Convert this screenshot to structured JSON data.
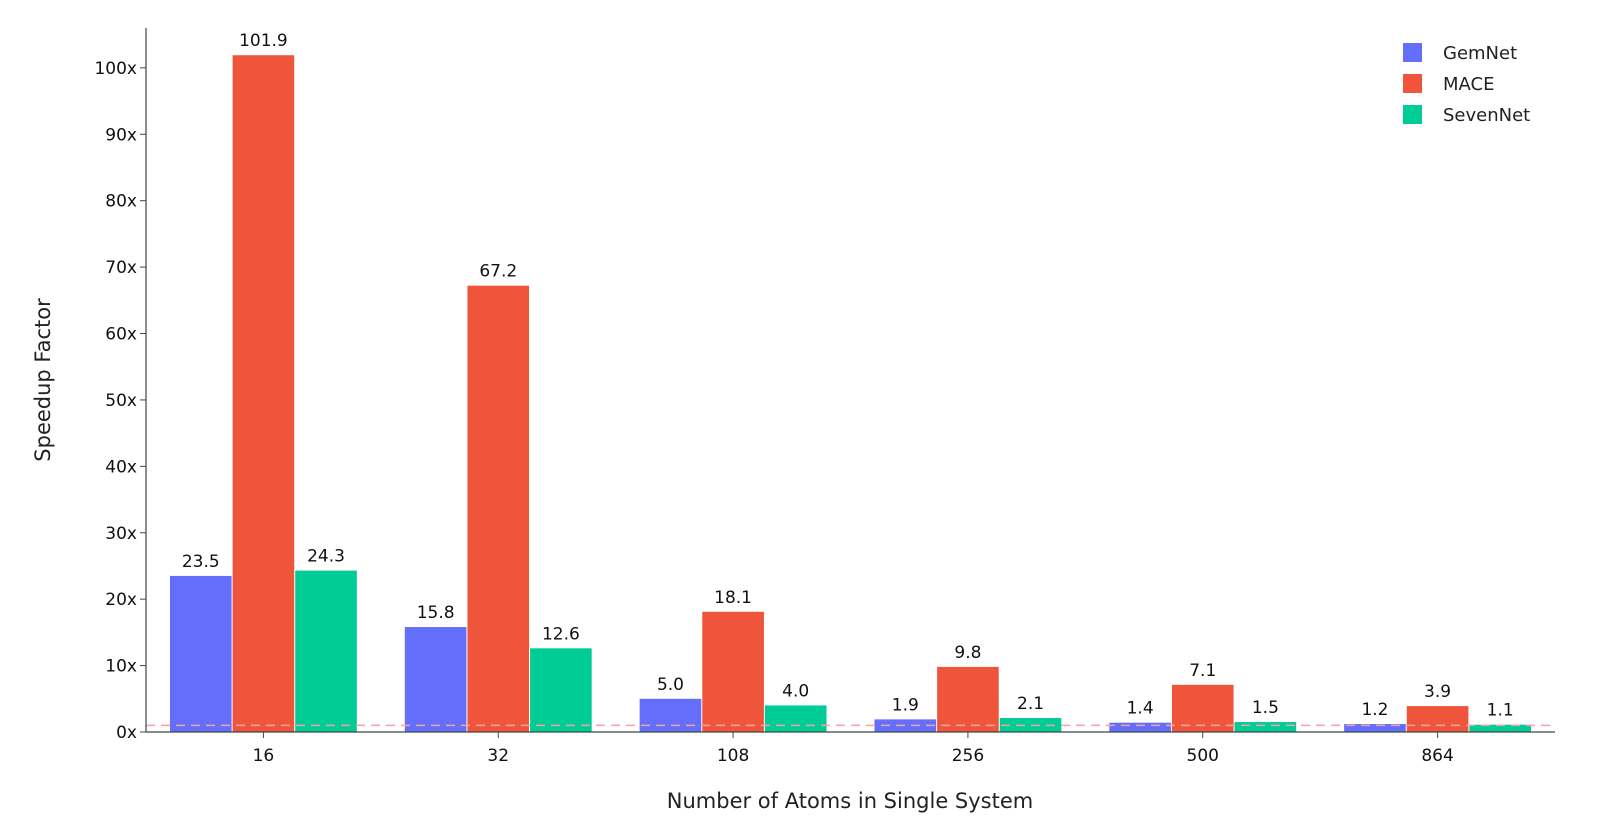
{
  "chart_data": {
    "type": "bar",
    "categories": [
      "16",
      "32",
      "108",
      "256",
      "500",
      "864"
    ],
    "series": [
      {
        "name": "GemNet",
        "color": "#636efa",
        "values": [
          23.5,
          15.8,
          5.0,
          1.9,
          1.4,
          1.2
        ],
        "labels": [
          "23.5",
          "15.8",
          "5.0",
          "1.9",
          "1.4",
          "1.2"
        ]
      },
      {
        "name": "MACE",
        "color": "#ef553b",
        "values": [
          101.9,
          67.2,
          18.1,
          9.8,
          7.1,
          3.9
        ],
        "labels": [
          "101.9",
          "67.2",
          "18.1",
          "9.8",
          "7.1",
          "3.9"
        ]
      },
      {
        "name": "SevenNet",
        "color": "#00cc96",
        "values": [
          24.3,
          12.6,
          4.0,
          2.1,
          1.5,
          1.1
        ],
        "labels": [
          "24.3",
          "12.6",
          "4.0",
          "2.1",
          "1.5",
          "1.1"
        ]
      }
    ],
    "xlabel": "Number of Atoms in Single System",
    "ylabel": "Speedup Factor",
    "ylim": [
      0,
      106
    ],
    "yticks": [
      0,
      10,
      20,
      30,
      40,
      50,
      60,
      70,
      80,
      90,
      100
    ],
    "ytick_labels": [
      "0x",
      "10x",
      "20x",
      "30x",
      "40x",
      "50x",
      "60x",
      "70x",
      "80x",
      "90x",
      "100x"
    ],
    "reference_line": {
      "y": 1,
      "style": "dashed",
      "color": "#f4a3a3"
    },
    "legend_position": "top-right",
    "grid": false
  }
}
